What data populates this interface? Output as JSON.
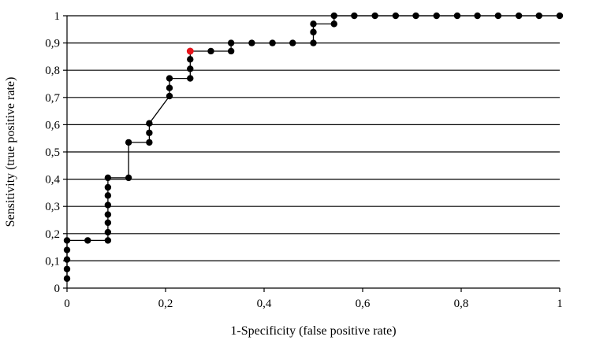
{
  "chart_data": {
    "type": "line",
    "xlabel": "1-Specificity (false positive rate)",
    "ylabel": "Sensitivity (true positive rate)",
    "xlim": [
      0,
      1
    ],
    "ylim": [
      0,
      1
    ],
    "x_ticks": [
      "0",
      "0,2",
      "0,4",
      "0,6",
      "0,8",
      "1"
    ],
    "x_tick_values": [
      0,
      0.2,
      0.4,
      0.6,
      0.8,
      1
    ],
    "y_ticks": [
      "0",
      "0,1",
      "0,2",
      "0,3",
      "0,4",
      "0,5",
      "0,6",
      "0,7",
      "0,8",
      "0,9",
      "1"
    ],
    "y_tick_values": [
      0,
      0.1,
      0.2,
      0.3,
      0.4,
      0.5,
      0.6,
      0.7,
      0.8,
      0.9,
      1
    ],
    "grid": "horizontal",
    "legend": "none",
    "series": [
      {
        "points": [
          [
            0,
            0.035
          ],
          [
            0,
            0.07
          ],
          [
            0,
            0.105
          ],
          [
            0,
            0.14
          ],
          [
            0,
            0.175
          ],
          [
            0.042,
            0.175
          ],
          [
            0.083,
            0.175
          ],
          [
            0.083,
            0.205
          ],
          [
            0.083,
            0.24
          ],
          [
            0.083,
            0.27
          ],
          [
            0.083,
            0.305
          ],
          [
            0.083,
            0.34
          ],
          [
            0.083,
            0.37
          ],
          [
            0.083,
            0.405
          ],
          [
            0.125,
            0.405
          ],
          [
            0.125,
            0.535
          ],
          [
            0.167,
            0.535
          ],
          [
            0.167,
            0.57
          ],
          [
            0.167,
            0.605
          ],
          [
            0.208,
            0.705
          ],
          [
            0.208,
            0.735
          ],
          [
            0.208,
            0.77
          ],
          [
            0.25,
            0.77
          ],
          [
            0.25,
            0.805
          ],
          [
            0.25,
            0.84
          ],
          [
            0.25,
            0.87
          ],
          [
            0.292,
            0.87
          ],
          [
            0.333,
            0.87
          ],
          [
            0.333,
            0.9
          ],
          [
            0.375,
            0.9
          ],
          [
            0.417,
            0.9
          ],
          [
            0.458,
            0.9
          ],
          [
            0.5,
            0.9
          ],
          [
            0.5,
            0.94
          ],
          [
            0.5,
            0.97
          ],
          [
            0.542,
            0.97
          ],
          [
            0.542,
            1.0
          ],
          [
            0.583,
            1.0
          ],
          [
            0.625,
            1.0
          ],
          [
            0.667,
            1.0
          ],
          [
            0.708,
            1.0
          ],
          [
            0.75,
            1.0
          ],
          [
            0.792,
            1.0
          ],
          [
            0.833,
            1.0
          ],
          [
            0.875,
            1.0
          ],
          [
            0.917,
            1.0
          ],
          [
            0.958,
            1.0
          ],
          [
            1.0,
            1.0
          ]
        ],
        "highlighted_point": [
          0.25,
          0.87
        ]
      }
    ],
    "colors": {
      "line": "#000000",
      "marker": "#000000",
      "highlight": "#e8141b",
      "grid": "#000000"
    }
  }
}
